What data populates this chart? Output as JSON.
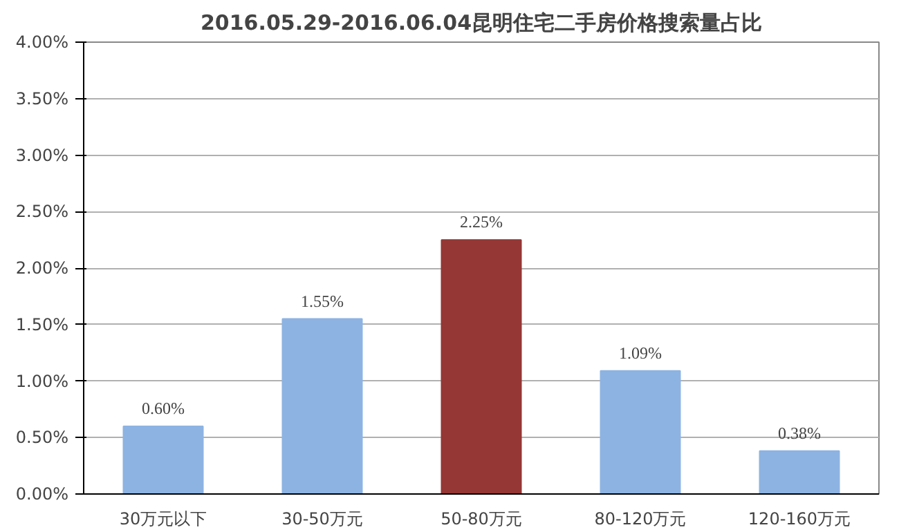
{
  "chart_data": {
    "type": "bar",
    "title": "2016.05.29-2016.06.04昆明住宅二手房价格搜索量占比",
    "categories": [
      "30万元以下",
      "30-50万元",
      "50-80万元",
      "80-120万元",
      "120-160万元"
    ],
    "values": [
      0.6,
      1.55,
      2.25,
      1.09,
      0.38
    ],
    "value_labels": [
      "0.60%",
      "1.55%",
      "2.25%",
      "1.09%",
      "0.38%"
    ],
    "colors": [
      "#8db3e2",
      "#8db3e2",
      "#953735",
      "#8db3e2",
      "#8db3e2"
    ],
    "ylim": [
      0,
      4
    ],
    "yticks": [
      {
        "value": 0,
        "label": "0.00%"
      },
      {
        "value": 0.5,
        "label": "0.50%"
      },
      {
        "value": 1,
        "label": "1.00%"
      },
      {
        "value": 1.5,
        "label": "1.50%"
      },
      {
        "value": 2,
        "label": "2.00%"
      },
      {
        "value": 2.5,
        "label": "2.50%"
      },
      {
        "value": 3,
        "label": "3.00%"
      },
      {
        "value": 3.5,
        "label": "3.50%"
      },
      {
        "value": 4,
        "label": "4.00%"
      }
    ],
    "grid": "y"
  }
}
